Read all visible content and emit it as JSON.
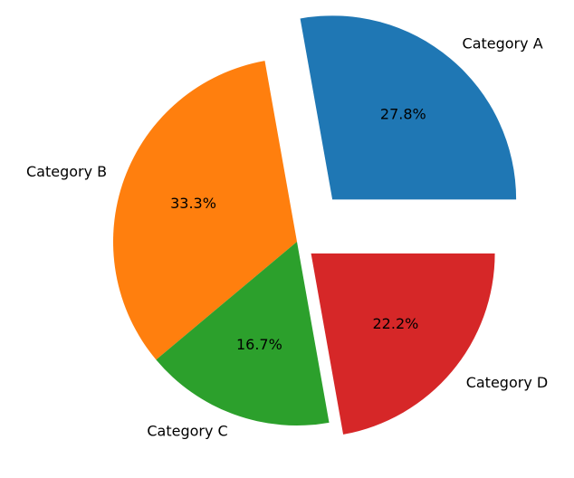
{
  "chart_data": {
    "type": "pie",
    "categories": [
      "Category A",
      "Category B",
      "Category C",
      "Category D"
    ],
    "values": [
      27.8,
      33.3,
      16.7,
      22.2
    ],
    "value_labels": [
      "27.8%",
      "33.3%",
      "16.7%",
      "22.2%"
    ],
    "colors": [
      "#1f77b4",
      "#ff7f0e",
      "#2ca02c",
      "#d62728"
    ],
    "explode": [
      0.3,
      0,
      0,
      0.1
    ]
  }
}
